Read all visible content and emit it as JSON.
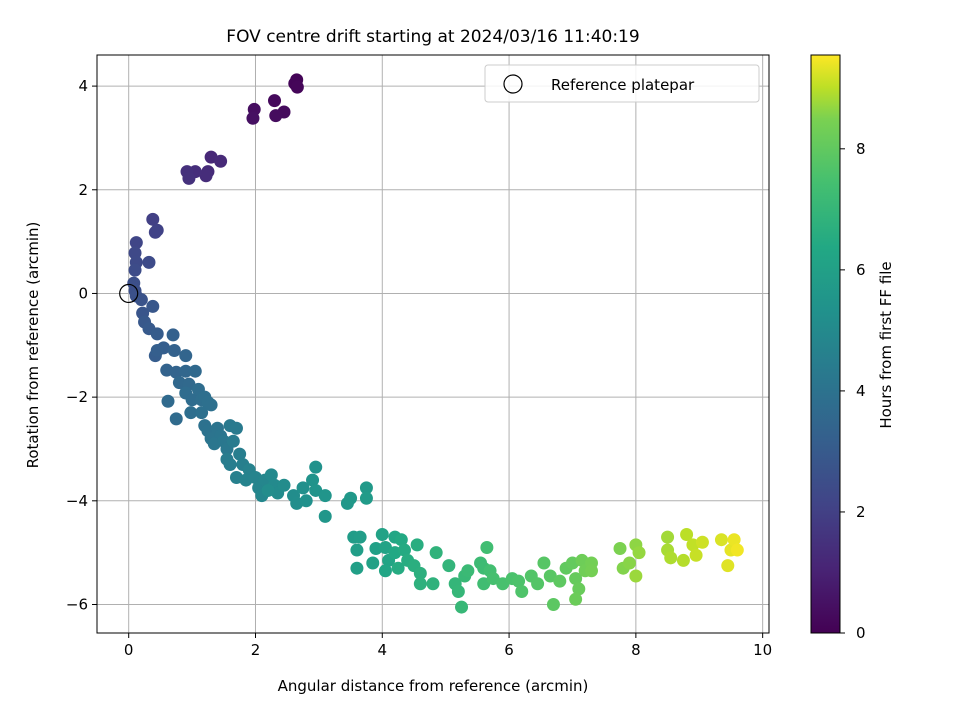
{
  "chart_data": {
    "type": "scatter",
    "title": "FOV centre drift starting at 2024/03/16 11:40:19",
    "xlabel": "Angular distance from reference (arcmin)",
    "ylabel": "Rotation from reference (arcmin)",
    "xlim": [
      -0.5,
      10.1
    ],
    "ylim": [
      -6.55,
      4.6
    ],
    "xticks": [
      0,
      2,
      4,
      6,
      8,
      10
    ],
    "yticks": [
      -6,
      -4,
      -2,
      0,
      2,
      4
    ],
    "grid": true,
    "legend": {
      "placement": "upper-right",
      "entries": [
        "Reference platepar"
      ]
    },
    "reference_point": {
      "x": 0,
      "y": 0
    },
    "colorbar": {
      "label": "Hours from first FF file",
      "range": [
        0,
        9.55
      ],
      "ticks": [
        0,
        2,
        4,
        6,
        8
      ],
      "colormap": "viridis"
    },
    "points": [
      [
        2.65,
        4.12,
        0.1
      ],
      [
        2.62,
        4.05,
        0.12
      ],
      [
        2.66,
        3.98,
        0.15
      ],
      [
        2.3,
        3.72,
        0.25
      ],
      [
        2.45,
        3.5,
        0.3
      ],
      [
        2.32,
        3.43,
        0.32
      ],
      [
        1.98,
        3.55,
        0.4
      ],
      [
        1.96,
        3.38,
        0.45
      ],
      [
        1.3,
        2.63,
        1.2
      ],
      [
        1.45,
        2.55,
        1.25
      ],
      [
        1.25,
        2.35,
        1.3
      ],
      [
        1.22,
        2.27,
        1.35
      ],
      [
        1.05,
        2.35,
        1.4
      ],
      [
        0.92,
        2.35,
        1.45
      ],
      [
        0.95,
        2.22,
        1.5
      ],
      [
        0.38,
        1.43,
        2.0
      ],
      [
        0.45,
        1.22,
        2.05
      ],
      [
        0.42,
        1.18,
        2.1
      ],
      [
        0.12,
        0.98,
        2.2
      ],
      [
        0.1,
        0.78,
        2.3
      ],
      [
        0.12,
        0.6,
        2.35
      ],
      [
        0.32,
        0.6,
        2.4
      ],
      [
        0.1,
        0.45,
        2.45
      ],
      [
        0.08,
        0.2,
        2.55
      ],
      [
        0.1,
        0.05,
        2.6
      ],
      [
        0.12,
        -0.05,
        2.65
      ],
      [
        0.2,
        -0.12,
        2.7
      ],
      [
        0.22,
        -0.38,
        2.8
      ],
      [
        0.38,
        -0.25,
        2.85
      ],
      [
        0.25,
        -0.55,
        2.9
      ],
      [
        0.32,
        -0.68,
        3.0
      ],
      [
        0.45,
        -0.78,
        3.05
      ],
      [
        0.42,
        -1.2,
        3.1
      ],
      [
        0.55,
        -1.05,
        3.15
      ],
      [
        0.45,
        -1.1,
        3.2
      ],
      [
        0.7,
        -0.8,
        3.25
      ],
      [
        0.72,
        -1.1,
        3.3
      ],
      [
        0.6,
        -1.48,
        3.35
      ],
      [
        0.75,
        -1.52,
        3.4
      ],
      [
        0.9,
        -1.2,
        3.45
      ],
      [
        0.9,
        -1.5,
        3.5
      ],
      [
        0.8,
        -1.72,
        3.55
      ],
      [
        0.95,
        -1.75,
        3.6
      ],
      [
        1.05,
        -1.5,
        3.62
      ],
      [
        0.62,
        -2.08,
        3.65
      ],
      [
        0.75,
        -2.42,
        3.7
      ],
      [
        0.9,
        -1.92,
        3.72
      ],
      [
        1.0,
        -2.05,
        3.75
      ],
      [
        1.1,
        -1.85,
        3.78
      ],
      [
        1.15,
        -2.05,
        3.8
      ],
      [
        0.98,
        -2.3,
        3.82
      ],
      [
        1.2,
        -2.0,
        3.85
      ],
      [
        1.25,
        -2.1,
        3.88
      ],
      [
        1.3,
        -2.15,
        3.9
      ],
      [
        1.15,
        -2.3,
        3.92
      ],
      [
        1.2,
        -2.55,
        3.95
      ],
      [
        1.25,
        -2.65,
        4.0
      ],
      [
        1.3,
        -2.8,
        4.05
      ],
      [
        1.4,
        -2.6,
        4.08
      ],
      [
        1.45,
        -2.75,
        4.1
      ],
      [
        1.35,
        -2.9,
        4.15
      ],
      [
        1.5,
        -2.85,
        4.2
      ],
      [
        1.55,
        -3.0,
        4.25
      ],
      [
        1.6,
        -2.55,
        4.3
      ],
      [
        1.7,
        -2.6,
        4.32
      ],
      [
        1.65,
        -2.85,
        4.35
      ],
      [
        1.55,
        -3.2,
        4.4
      ],
      [
        1.6,
        -3.3,
        4.45
      ],
      [
        1.75,
        -3.1,
        4.5
      ],
      [
        1.8,
        -3.3,
        4.55
      ],
      [
        1.7,
        -3.55,
        4.6
      ],
      [
        1.9,
        -3.4,
        4.65
      ],
      [
        1.85,
        -3.6,
        4.7
      ],
      [
        2.0,
        -3.55,
        4.75
      ],
      [
        2.05,
        -3.75,
        4.8
      ],
      [
        2.15,
        -3.6,
        4.85
      ],
      [
        2.1,
        -3.9,
        4.9
      ],
      [
        2.25,
        -3.5,
        4.95
      ],
      [
        2.3,
        -3.7,
        5.0
      ],
      [
        2.35,
        -3.85,
        5.05
      ],
      [
        2.45,
        -3.7,
        5.1
      ],
      [
        2.2,
        -3.8,
        5.12
      ],
      [
        2.6,
        -3.9,
        5.15
      ],
      [
        2.65,
        -4.05,
        5.2
      ],
      [
        2.75,
        -3.75,
        5.25
      ],
      [
        2.8,
        -4.0,
        5.3
      ],
      [
        2.95,
        -3.35,
        5.35
      ],
      [
        2.9,
        -3.6,
        5.4
      ],
      [
        2.95,
        -3.8,
        5.45
      ],
      [
        3.1,
        -3.9,
        5.5
      ],
      [
        3.1,
        -4.3,
        5.55
      ],
      [
        3.45,
        -4.05,
        5.6
      ],
      [
        3.5,
        -3.95,
        5.65
      ],
      [
        3.75,
        -3.75,
        5.7
      ],
      [
        3.75,
        -3.95,
        5.75
      ],
      [
        3.55,
        -4.7,
        5.8
      ],
      [
        3.65,
        -4.7,
        5.85
      ],
      [
        3.6,
        -4.95,
        5.9
      ],
      [
        3.6,
        -5.3,
        5.95
      ],
      [
        3.9,
        -4.92,
        6.0
      ],
      [
        3.85,
        -5.2,
        6.05
      ],
      [
        4.0,
        -4.65,
        6.1
      ],
      [
        4.05,
        -4.9,
        6.15
      ],
      [
        4.1,
        -5.15,
        6.2
      ],
      [
        4.05,
        -5.35,
        6.25
      ],
      [
        4.2,
        -4.7,
        6.3
      ],
      [
        4.2,
        -5.0,
        6.35
      ],
      [
        4.3,
        -4.75,
        6.4
      ],
      [
        4.35,
        -4.95,
        6.45
      ],
      [
        4.25,
        -5.3,
        6.5
      ],
      [
        4.4,
        -5.15,
        6.55
      ],
      [
        4.55,
        -4.85,
        6.6
      ],
      [
        4.5,
        -5.25,
        6.65
      ],
      [
        4.6,
        -5.4,
        6.7
      ],
      [
        4.6,
        -5.6,
        6.75
      ],
      [
        4.8,
        -5.6,
        6.8
      ],
      [
        4.85,
        -5.0,
        6.85
      ],
      [
        5.05,
        -5.25,
        6.9
      ],
      [
        5.15,
        -5.6,
        6.95
      ],
      [
        5.2,
        -5.75,
        7.0
      ],
      [
        5.25,
        -6.05,
        7.05
      ],
      [
        5.3,
        -5.45,
        7.1
      ],
      [
        5.35,
        -5.35,
        7.15
      ],
      [
        5.55,
        -5.2,
        7.2
      ],
      [
        5.6,
        -5.3,
        7.25
      ],
      [
        5.6,
        -5.6,
        7.3
      ],
      [
        5.65,
        -4.9,
        7.35
      ],
      [
        5.7,
        -5.35,
        7.4
      ],
      [
        5.75,
        -5.5,
        7.45
      ],
      [
        5.9,
        -5.6,
        7.5
      ],
      [
        6.05,
        -5.5,
        7.55
      ],
      [
        6.15,
        -5.55,
        7.6
      ],
      [
        6.2,
        -5.75,
        7.65
      ],
      [
        6.35,
        -5.45,
        7.7
      ],
      [
        6.45,
        -5.6,
        7.75
      ],
      [
        6.55,
        -5.2,
        7.8
      ],
      [
        6.65,
        -5.45,
        7.85
      ],
      [
        6.7,
        -6.0,
        7.9
      ],
      [
        6.8,
        -5.55,
        7.95
      ],
      [
        6.9,
        -5.3,
        8.0
      ],
      [
        7.0,
        -5.2,
        8.05
      ],
      [
        7.05,
        -5.5,
        8.1
      ],
      [
        7.1,
        -5.7,
        8.15
      ],
      [
        7.05,
        -5.9,
        8.2
      ],
      [
        7.15,
        -5.15,
        8.25
      ],
      [
        7.2,
        -5.35,
        8.3
      ],
      [
        7.3,
        -5.2,
        8.35
      ],
      [
        7.3,
        -5.35,
        8.4
      ],
      [
        7.75,
        -4.92,
        8.5
      ],
      [
        7.8,
        -5.3,
        8.55
      ],
      [
        7.9,
        -5.2,
        8.6
      ],
      [
        8.0,
        -4.85,
        8.65
      ],
      [
        8.05,
        -5.0,
        8.7
      ],
      [
        8.0,
        -5.45,
        8.75
      ],
      [
        8.5,
        -4.7,
        8.8
      ],
      [
        8.5,
        -4.95,
        8.85
      ],
      [
        8.55,
        -5.1,
        8.9
      ],
      [
        8.75,
        -5.15,
        8.95
      ],
      [
        8.8,
        -4.65,
        9.0
      ],
      [
        8.9,
        -4.85,
        9.05
      ],
      [
        8.95,
        -5.05,
        9.1
      ],
      [
        9.05,
        -4.8,
        9.15
      ],
      [
        9.35,
        -4.75,
        9.25
      ],
      [
        9.45,
        -5.25,
        9.3
      ],
      [
        9.5,
        -4.95,
        9.35
      ],
      [
        9.55,
        -4.75,
        9.4
      ],
      [
        9.6,
        -4.95,
        9.45
      ]
    ]
  }
}
